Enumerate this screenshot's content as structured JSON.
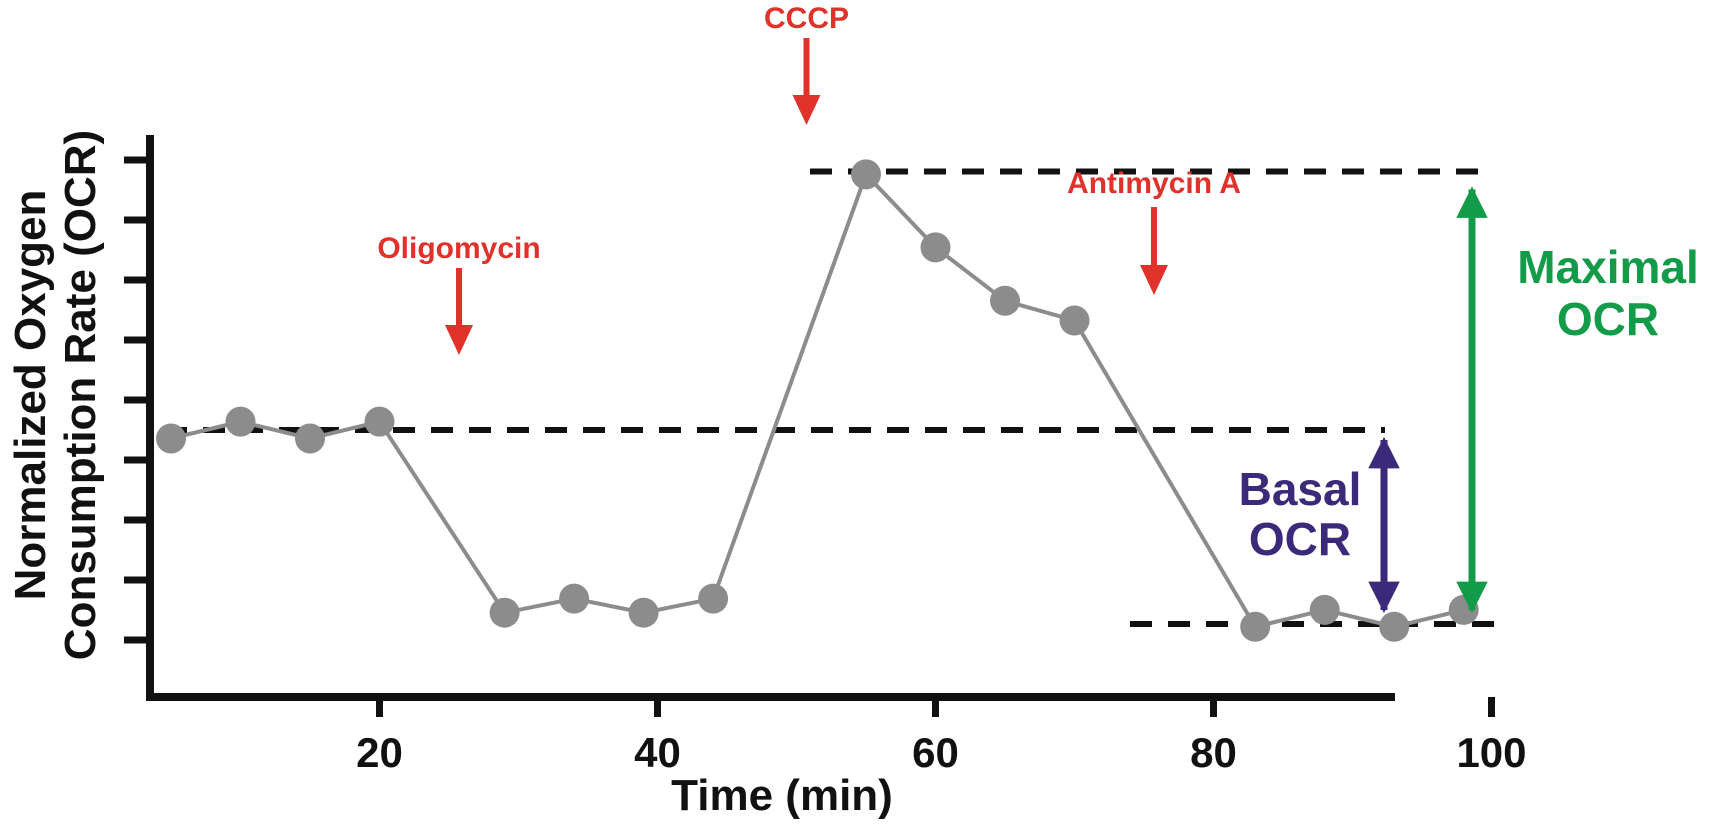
{
  "chart_data": {
    "type": "line",
    "xlabel": "Time (min)",
    "ylabel_lines": [
      "Normalized Oxygen",
      "Consumption Rate (OCR)"
    ],
    "xticks": [
      20,
      40,
      60,
      80,
      100
    ],
    "xlim": [
      3,
      103
    ],
    "ylim": [
      0,
      10
    ],
    "y_tick_count": 9,
    "series": [
      {
        "x": [
          5,
          10,
          15,
          20,
          29,
          34,
          39,
          44,
          55,
          60,
          65,
          70,
          83,
          88,
          93,
          98
        ],
        "y": [
          4.6,
          4.9,
          4.6,
          4.9,
          1.5,
          1.75,
          1.5,
          1.75,
          9.3,
          8.0,
          7.05,
          6.7,
          1.25,
          1.55,
          1.25,
          1.55
        ]
      }
    ],
    "reference_lines": {
      "basal": 4.75,
      "maximal": 9.35,
      "minimum": 1.3
    },
    "annotations": [
      {
        "label": "Oligomycin",
        "x": 25
      },
      {
        "label": "CCCP",
        "x": 50
      },
      {
        "label": "Antimycin A",
        "x": 75
      }
    ],
    "brackets": [
      {
        "lines": [
          "Basal",
          "OCR"
        ]
      },
      {
        "lines": [
          "Maximal",
          "OCR"
        ]
      }
    ],
    "colors": {
      "line": "#8c8c8c",
      "point": "#8c8c8c",
      "axis": "#111111",
      "injection": "#e0312b",
      "basal": "#3b2a7a",
      "maximal": "#129b48"
    }
  }
}
